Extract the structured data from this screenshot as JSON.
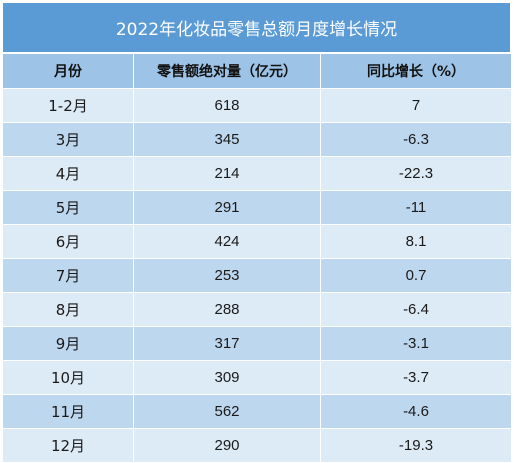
{
  "title": "2022年化妆品零售总额月度增长情况",
  "headers": [
    "月份",
    "零售额绝对量（亿元）",
    "同比增长（%）"
  ],
  "rows": [
    {
      "month": "1-2月",
      "amount": "618",
      "growth": "7"
    },
    {
      "month": "3月",
      "amount": "345",
      "growth": "-6.3"
    },
    {
      "month": "4月",
      "amount": "214",
      "growth": "-22.3"
    },
    {
      "month": "5月",
      "amount": "291",
      "growth": "-11"
    },
    {
      "month": "6月",
      "amount": "424",
      "growth": "8.1"
    },
    {
      "month": "7月",
      "amount": "253",
      "growth": "0.7"
    },
    {
      "month": "8月",
      "amount": "288",
      "growth": "-6.4"
    },
    {
      "month": "9月",
      "amount": "317",
      "growth": "-3.1"
    },
    {
      "month": "10月",
      "amount": "309",
      "growth": "-3.7"
    },
    {
      "month": "11月",
      "amount": "562",
      "growth": "-4.6"
    },
    {
      "month": "12月",
      "amount": "290",
      "growth": "-19.3"
    }
  ],
  "colors": {
    "title_bg": "#5b9bd5",
    "header_bg": "#9dc3e6",
    "row_light": "#ddebf7",
    "row_dark": "#bdd7ee"
  }
}
